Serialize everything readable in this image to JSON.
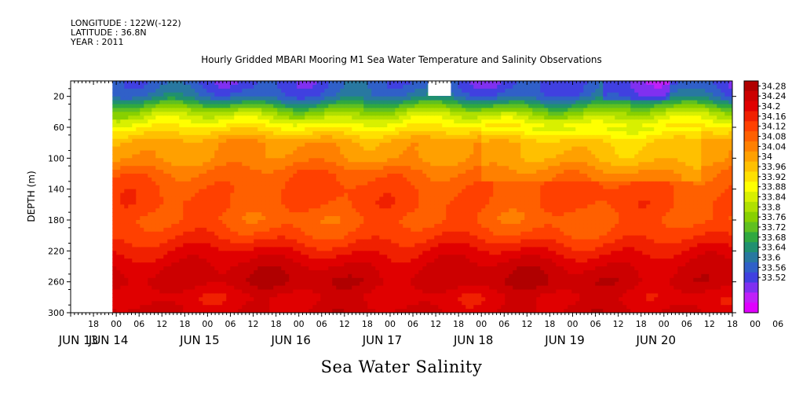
{
  "header": {
    "longitude": "LONGITUDE : 122W(-122)",
    "latitude": "LATITUDE : 36.8N",
    "year": "YEAR : 2011"
  },
  "footer_label": "Sea Water Salinity",
  "chart_data": {
    "type": "heatmap",
    "title": "Hourly Gridded MBARI Mooring M1 Sea Water Temperature and Salinity Observations",
    "ylabel": "DEPTH (m)",
    "xlabel": "",
    "ylim": [
      300,
      0
    ],
    "x_range_hours": [
      "2011-06-13 12:00",
      "2011-06-20 18:00"
    ],
    "data_start": "2011-06-13 23:00",
    "yticks": [
      20,
      60,
      100,
      140,
      180,
      220,
      260,
      300
    ],
    "hour_tick_labels": [
      "18",
      "00",
      "06",
      "12",
      "18",
      "00",
      "06",
      "12",
      "18",
      "00",
      "06",
      "12",
      "18",
      "00",
      "06",
      "12",
      "18",
      "00",
      "06",
      "12",
      "18",
      "00",
      "06",
      "12",
      "18",
      "00",
      "06",
      "12",
      "18",
      "00",
      "06",
      "12"
    ],
    "day_labels": [
      "JUN 13",
      "JUN 14",
      "JUN 15",
      "JUN 16",
      "JUN 17",
      "JUN 18",
      "JUN 19",
      "JUN 20"
    ],
    "colorbar": {
      "min": 33.52,
      "max": 34.28,
      "labels": [
        "34.28",
        "34.24",
        "34.2",
        "34.16",
        "34.12",
        "34.08",
        "34.04",
        "34",
        "33.96",
        "33.92",
        "33.88",
        "33.84",
        "33.8",
        "33.76",
        "33.72",
        "33.68",
        "33.64",
        "33.6",
        "33.56",
        "33.52"
      ],
      "colors": [
        "#b00000",
        "#cc0000",
        "#e00000",
        "#f02000",
        "#ff4000",
        "#ff6000",
        "#ff8000",
        "#ffa000",
        "#ffc000",
        "#ffe000",
        "#ffff00",
        "#d8f000",
        "#b0e000",
        "#88d000",
        "#60c020",
        "#30a840",
        "#209070",
        "#2878a0",
        "#3060c8",
        "#4040e0",
        "#8030f0",
        "#c020f8",
        "#e000ff"
      ]
    },
    "depth_profile": [
      {
        "depth": 5,
        "value": 33.65
      },
      {
        "depth": 20,
        "value": 33.68
      },
      {
        "depth": 40,
        "value": 33.85
      },
      {
        "depth": 60,
        "value": 33.95
      },
      {
        "depth": 80,
        "value": 34.04
      },
      {
        "depth": 100,
        "value": 34.05
      },
      {
        "depth": 120,
        "value": 34.1
      },
      {
        "depth": 140,
        "value": 34.12
      },
      {
        "depth": 160,
        "value": 34.12
      },
      {
        "depth": 180,
        "value": 34.1
      },
      {
        "depth": 200,
        "value": 34.13
      },
      {
        "depth": 220,
        "value": 34.18
      },
      {
        "depth": 240,
        "value": 34.22
      },
      {
        "depth": 260,
        "value": 34.24
      },
      {
        "depth": 280,
        "value": 34.2
      },
      {
        "depth": 300,
        "value": 34.22
      }
    ]
  }
}
